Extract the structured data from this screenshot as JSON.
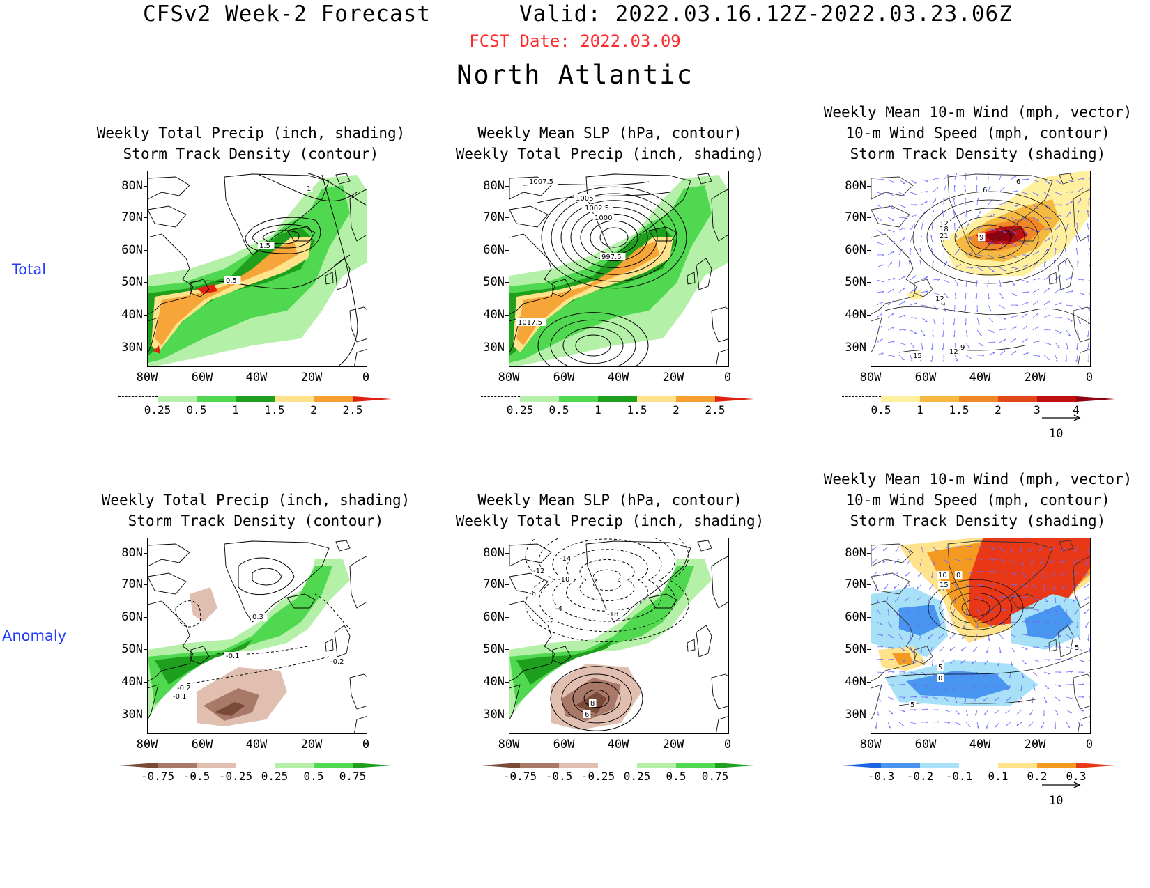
{
  "header": {
    "title": "CFSv2 Week-2 Forecast",
    "valid": "Valid: 2022.03.16.12Z-2022.03.23.06Z",
    "fcst_date": "FCST Date: 2022.03.09",
    "region": "North Atlantic"
  },
  "rows": {
    "total": "Total",
    "anomaly": "Anomaly"
  },
  "axes": {
    "lat": [
      "80N",
      "70N",
      "60N",
      "50N",
      "40N",
      "30N"
    ],
    "lon": [
      "80W",
      "60W",
      "40W",
      "20W",
      "0"
    ]
  },
  "panel_titles": {
    "precip_storm": [
      "Weekly Total Precip (inch, shading)",
      "Storm Track Density (contour)"
    ],
    "slp_precip": [
      "Weekly Mean SLP (hPa, contour)",
      "Weekly Total Precip (inch, shading)"
    ],
    "wind_storm": [
      "Weekly Mean 10-m Wind (mph, vector)",
      "10-m Wind Speed (mph, contour)",
      "Storm Track Density (shading)"
    ]
  },
  "contour_labels": {
    "total_precip": [
      "1",
      "1.5",
      "0.5"
    ],
    "total_slp": [
      "1007.5",
      "1005",
      "1002.5",
      "1000",
      "997.5",
      "1017.5"
    ],
    "total_wind": [
      "6",
      "6",
      "12",
      "18",
      "21",
      "9",
      "12",
      "9",
      "9",
      "12",
      "15"
    ],
    "anom_precip": [
      "0.3",
      "-0.1",
      "-0.2",
      "-0.2",
      "-0.1"
    ],
    "anom_slp": [
      "-14",
      "-12",
      "-10",
      "-6",
      "-4",
      "-2",
      "-18",
      "8",
      "6"
    ],
    "anom_wind": [
      "10",
      "0",
      "15",
      "5",
      "0",
      "5",
      "5"
    ]
  },
  "colorbars": {
    "precip_total": {
      "labels": [
        "0.25",
        "0.5",
        "1",
        "1.5",
        "2",
        "2.5"
      ],
      "colors": [
        "#ffffff",
        "#b4f0a8",
        "#50d850",
        "#1ea01e",
        "#ffe28c",
        "#f5a030",
        "#e02010"
      ]
    },
    "storm_total": {
      "labels": [
        "0.5",
        "1",
        "1.5",
        "2",
        "3",
        "4"
      ],
      "colors": [
        "#ffffff",
        "#fff0a0",
        "#f5b840",
        "#f08828",
        "#e04818",
        "#c01010",
        "#900010"
      ]
    },
    "precip_anom": {
      "labels": [
        "-0.75",
        "-0.5",
        "-0.25",
        "0.25",
        "0.5",
        "0.75"
      ],
      "colors": [
        "#7a4a38",
        "#a87868",
        "#e0beb0",
        "#ffffff",
        "#b4f0a8",
        "#50d850",
        "#1ea01e"
      ]
    },
    "storm_anom": {
      "labels": [
        "-0.3",
        "-0.2",
        "-0.1",
        "0.1",
        "0.2",
        "0.3"
      ],
      "colors": [
        "#1e64e0",
        "#4896f0",
        "#a8e0f8",
        "#ffffff",
        "#ffe28c",
        "#f59a20",
        "#e83818"
      ]
    },
    "vector_ref": "10"
  },
  "colors": {
    "date_red": "#ff2a2a",
    "row_label_blue": "#1f3cff",
    "vector_blue": "#6a6aff"
  }
}
